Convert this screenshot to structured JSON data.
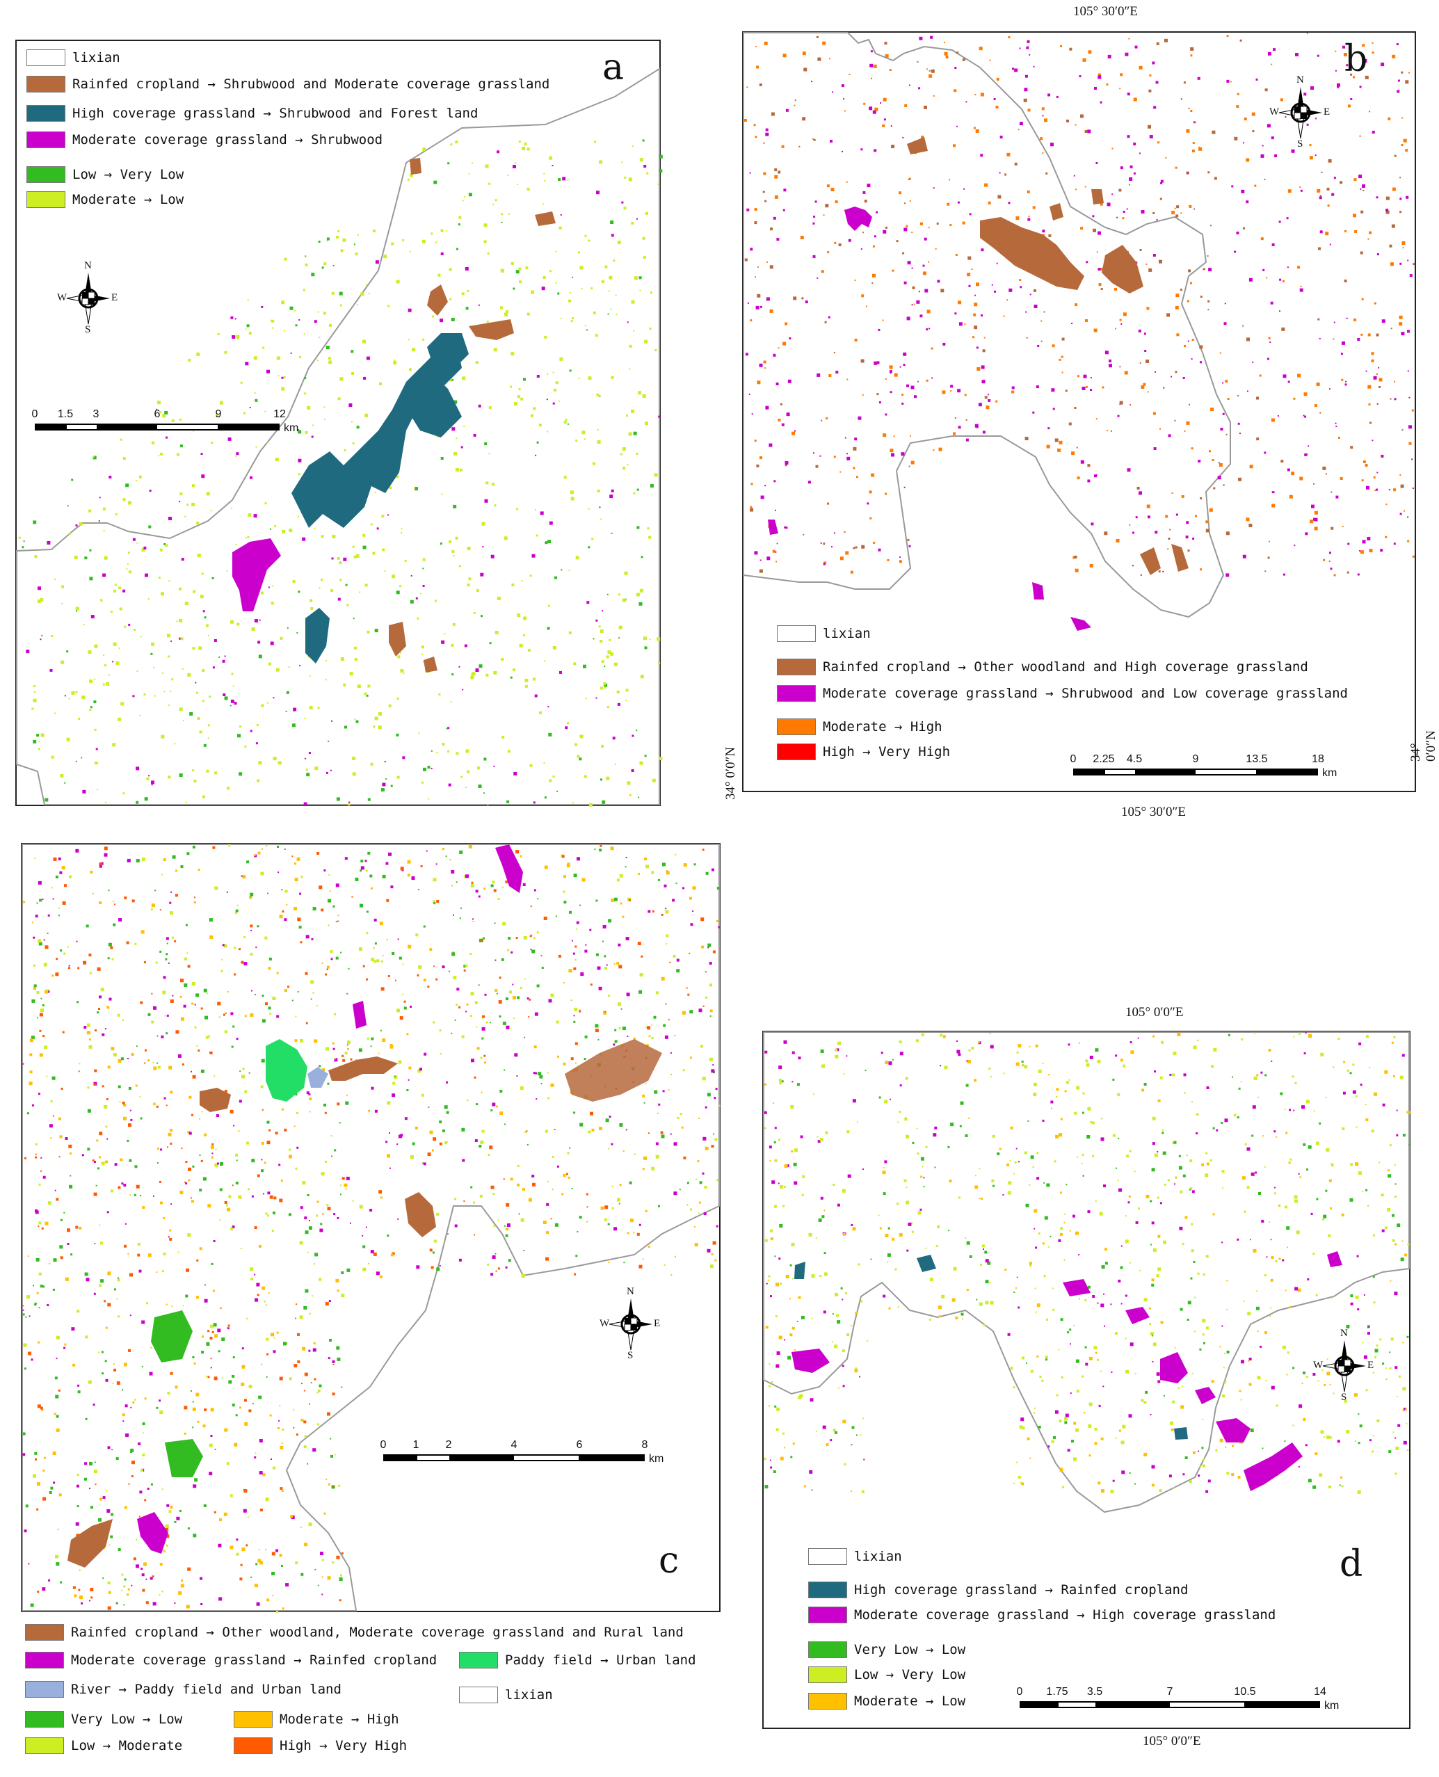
{
  "colors": {
    "rainfed_cropland_change": "#b66a3c",
    "high_cov_grass_change": "#1f6a7e",
    "moderate_cov_grass_change": "#cc00cc",
    "very_low_to_low": "#33bb22",
    "moderate_to_low": "#ccee22",
    "moderate_to_high": "#ff7a00",
    "high_to_very_high": "#ff0000",
    "paddy_to_urban": "#22dd66",
    "river_change": "#99b0dd",
    "low_to_moderate": "#ccee22",
    "moderate_to_high_c": "#ffc000",
    "high_to_very_high_c": "#ff5a00",
    "boundary": "#999999"
  },
  "panel_a": {
    "letter": "a",
    "legend": [
      {
        "label": "lixian",
        "swatch": "#ffffff"
      },
      {
        "label": "Rainfed cropland → Shrubwood and Moderate coverage grassland",
        "swatch": "#b66a3c"
      },
      {
        "label": "High coverage grassland → Shrubwood and Forest land",
        "swatch": "#1f6a7e"
      },
      {
        "label": "Moderate coverage grassland → Shrubwood",
        "swatch": "#cc00cc"
      },
      {
        "label": "Low → Very Low",
        "swatch": "#33bb22"
      },
      {
        "label": "Moderate → Low",
        "swatch": "#ccee22"
      }
    ],
    "compass": {
      "n": "N",
      "s": "S",
      "e": "E",
      "w": "W"
    },
    "scale": {
      "ticks": [
        "0",
        "1.5",
        "3",
        "6",
        "9",
        "12"
      ],
      "unit": "km"
    }
  },
  "panel_b": {
    "letter": "b",
    "coord_top": "105° 30′0″E",
    "coord_bottom": "105° 30′0″E",
    "coord_left": "34° 0′0″N",
    "coord_right": "34° 0′0″N",
    "legend": [
      {
        "label": "lixian",
        "swatch": "#ffffff"
      },
      {
        "label": "Rainfed cropland → Other woodland and High coverage grassland",
        "swatch": "#b66a3c"
      },
      {
        "label": "Moderate coverage grassland → Shrubwood and Low coverage grassland",
        "swatch": "#cc00cc"
      },
      {
        "label": "Moderate → High",
        "swatch": "#ff7a00"
      },
      {
        "label": "High → Very High",
        "swatch": "#ff0000"
      }
    ],
    "compass": {
      "n": "N",
      "s": "S",
      "e": "E",
      "w": "W"
    },
    "scale": {
      "ticks": [
        "0",
        "2.25",
        "4.5",
        "9",
        "13.5",
        "18"
      ],
      "unit": "km"
    }
  },
  "panel_c": {
    "letter": "c",
    "legend": [
      {
        "label": "Rainfed cropland → Other woodland, Moderate coverage grassland and Rural land",
        "swatch": "#b66a3c"
      },
      {
        "label": "Moderate coverage grassland → Rainfed cropland",
        "swatch": "#cc00cc"
      },
      {
        "label": "Paddy field → Urban land",
        "swatch": "#22dd66"
      },
      {
        "label": "River → Paddy field and Urban land",
        "swatch": "#99b0dd"
      },
      {
        "label": "lixian",
        "swatch": "#ffffff"
      },
      {
        "label": "Very Low → Low",
        "swatch": "#33bb22"
      },
      {
        "label": "Moderate → High",
        "swatch": "#ffc000"
      },
      {
        "label": "Low → Moderate",
        "swatch": "#ccee22"
      },
      {
        "label": "High → Very High",
        "swatch": "#ff5a00"
      }
    ],
    "compass": {
      "n": "N",
      "s": "S",
      "e": "E",
      "w": "W"
    },
    "scale": {
      "ticks": [
        "0",
        "1",
        "2",
        "4",
        "6",
        "8"
      ],
      "unit": "km"
    }
  },
  "panel_d": {
    "letter": "d",
    "coord_top": "105° 0′0″E",
    "coord_bottom": "105° 0′0″E",
    "legend": [
      {
        "label": "lixian",
        "swatch": "#ffffff"
      },
      {
        "label": "High coverage grassland → Rainfed cropland",
        "swatch": "#1f6a7e"
      },
      {
        "label": "Moderate coverage grassland → High coverage grassland",
        "swatch": "#cc00cc"
      },
      {
        "label": "Very Low → Low",
        "swatch": "#33bb22"
      },
      {
        "label": "Low → Very Low",
        "swatch": "#ccee22"
      },
      {
        "label": "Moderate → Low",
        "swatch": "#ffc000"
      }
    ],
    "compass": {
      "n": "N",
      "s": "S",
      "e": "E",
      "w": "W"
    },
    "scale": {
      "ticks": [
        "0",
        "1.75",
        "3.5",
        "7",
        "10.5",
        "14"
      ],
      "unit": "km"
    }
  }
}
